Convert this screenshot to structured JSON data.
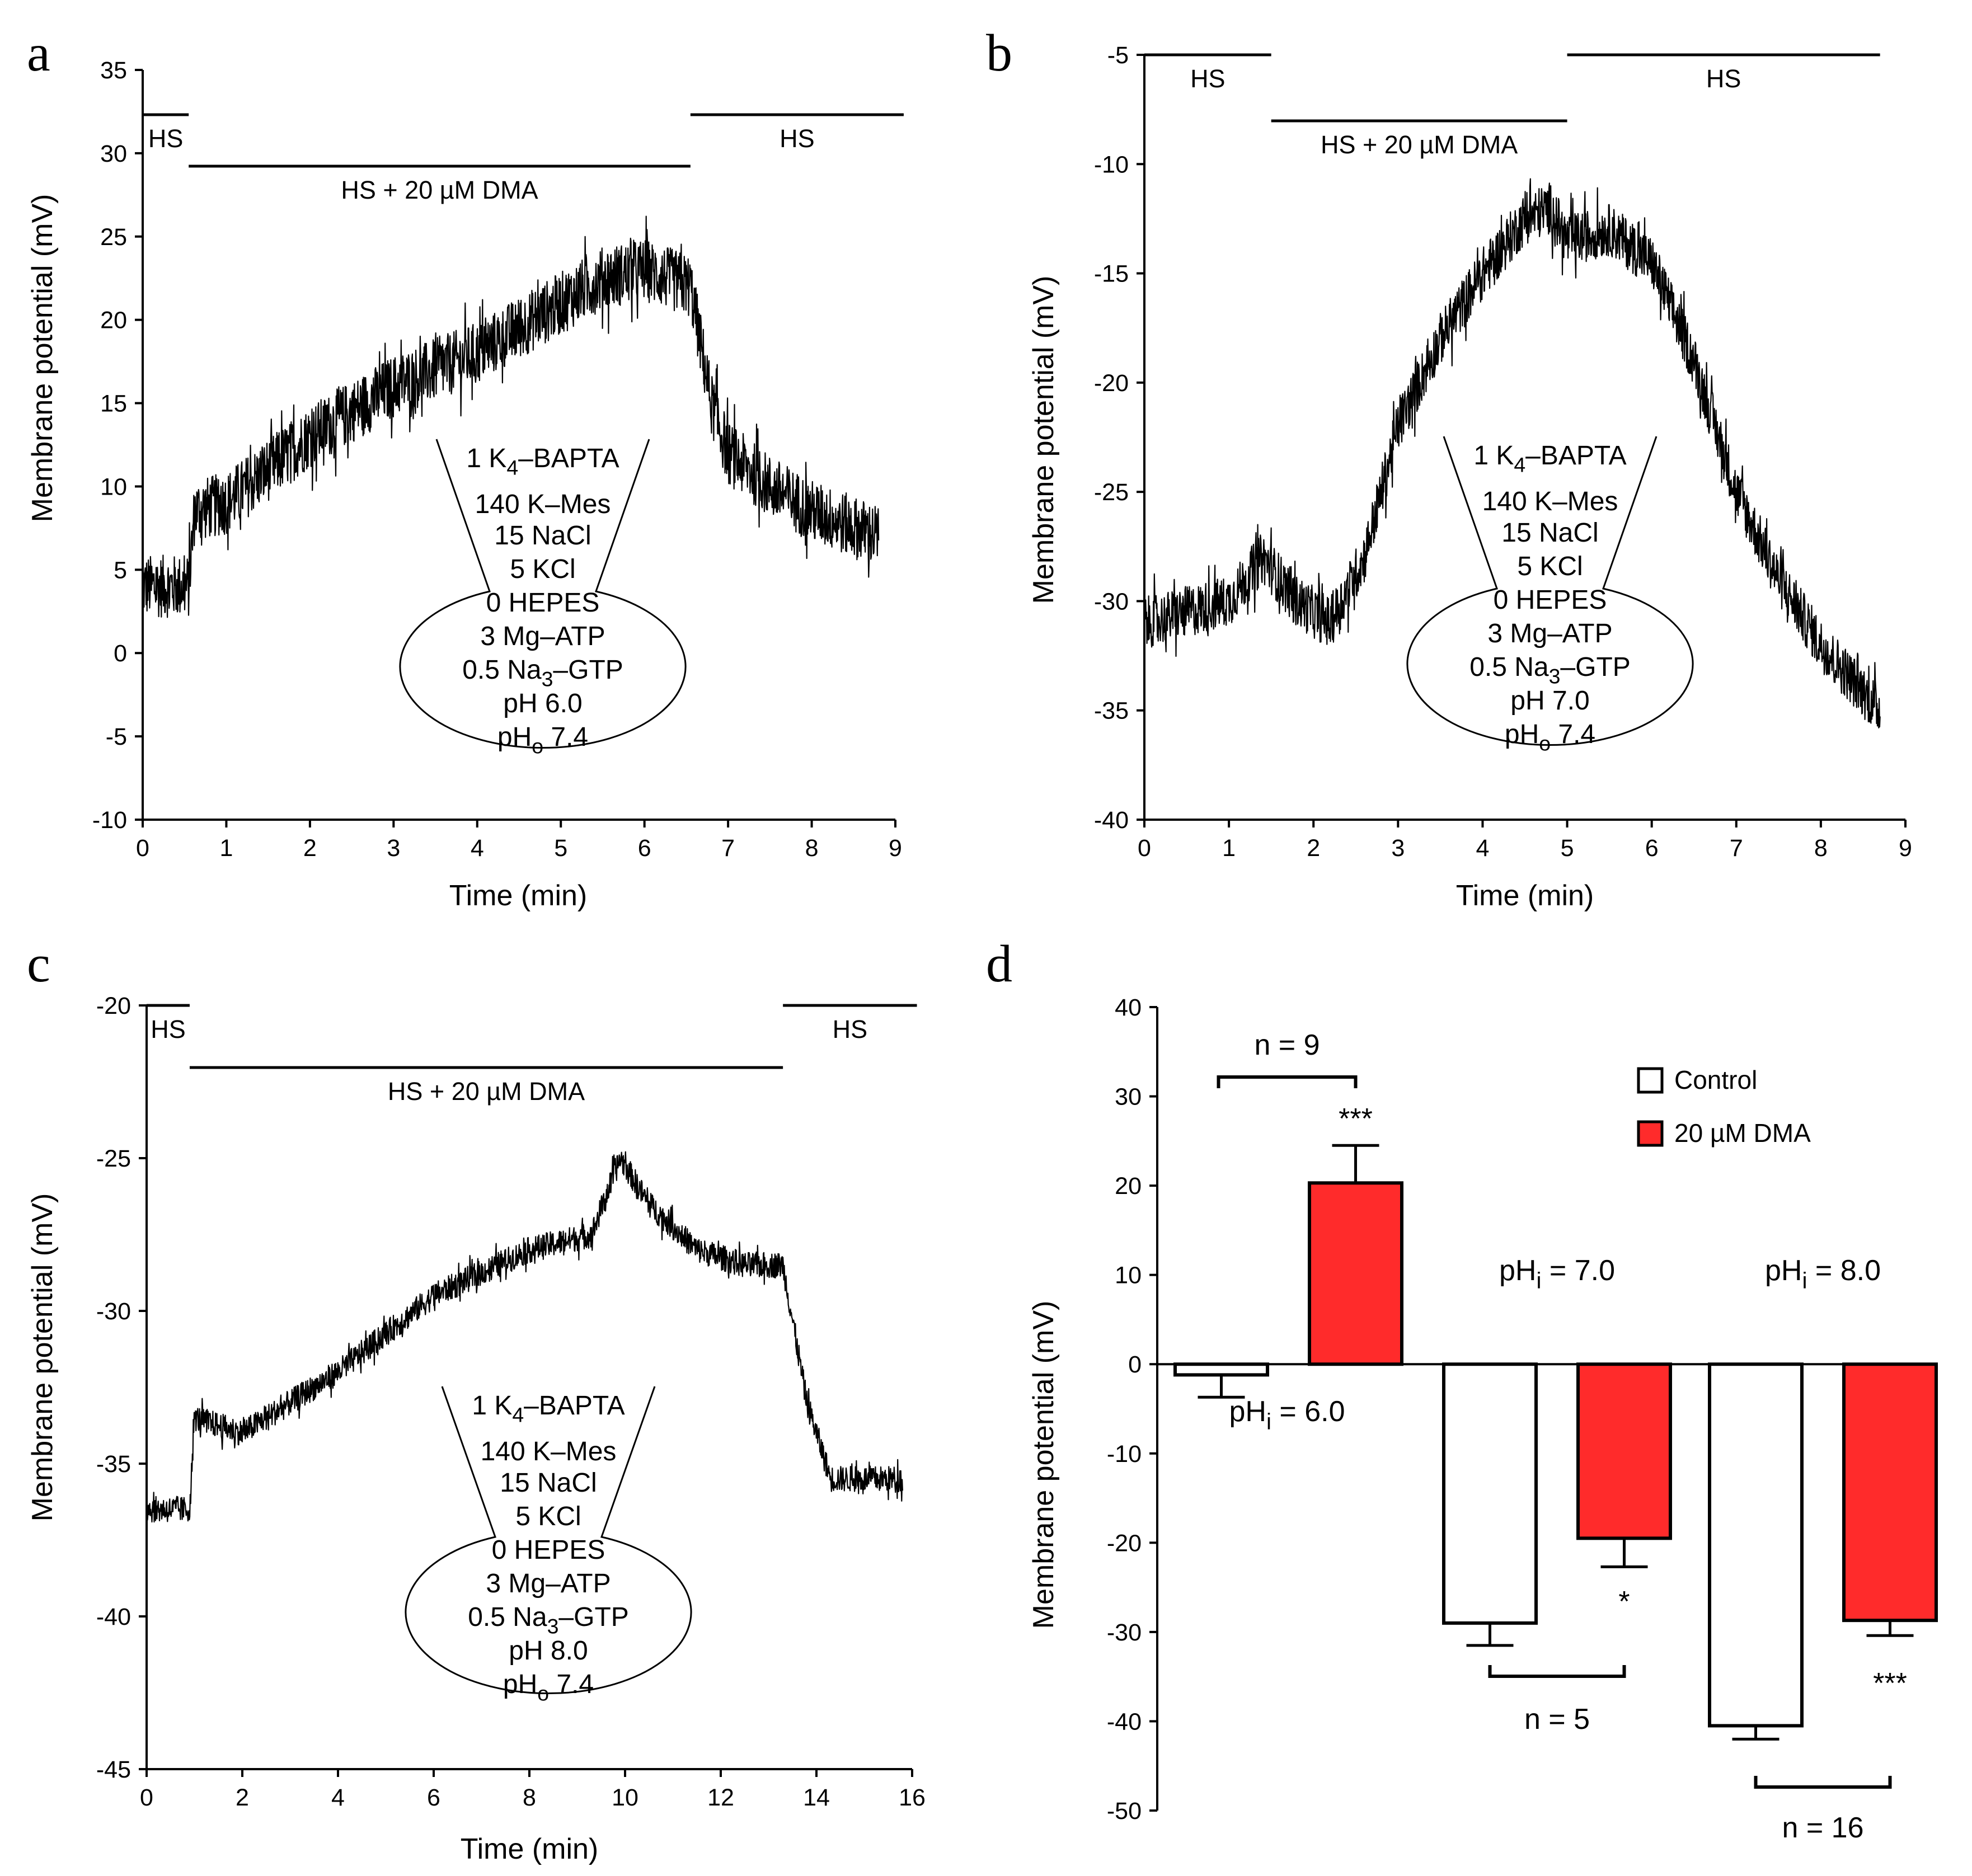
{
  "colors": {
    "trace": "#000000",
    "highlight": "#ee2222",
    "dma_bar": "#ff2b2b",
    "control_bar": "#ffffff"
  },
  "chart_data": [
    {
      "type": "line",
      "panel": "a",
      "xlabel": "Time (min)",
      "ylabel": "Membrane potential (mV)",
      "xlim": [
        0,
        9
      ],
      "ylim": [
        -10,
        35
      ],
      "xticks": [
        0,
        1,
        2,
        3,
        4,
        5,
        6,
        7,
        8,
        9
      ],
      "yticks": [
        -10,
        -5,
        0,
        5,
        10,
        15,
        20,
        25,
        30,
        35
      ],
      "xtick_labels": [
        "0",
        "1",
        "2",
        "3",
        "4",
        "5",
        "6",
        "7",
        "8",
        "9"
      ],
      "ytick_labels": [
        "-10",
        "-5",
        "0",
        "5",
        "10",
        "15",
        "20",
        "25",
        "30",
        "35"
      ],
      "trace_keypoints": {
        "x": [
          0,
          0.55,
          0.62,
          1,
          2,
          3,
          4,
          5,
          5.5,
          6,
          6.55,
          6.8,
          7,
          7.5,
          8,
          8.8
        ],
        "y": [
          4,
          4,
          8.5,
          9,
          13,
          16,
          18,
          21,
          22.5,
          23,
          22,
          15,
          12,
          10,
          8.5,
          7
        ]
      },
      "bars": [
        {
          "label": "HS",
          "x0": 0,
          "x1": 0.55,
          "level": "high"
        },
        {
          "label": "HS + 20 µM DMA",
          "x0": 0.55,
          "x1": 6.55,
          "level": "low"
        },
        {
          "label": "HS",
          "x0": 6.55,
          "x1": 9.1,
          "level": "high"
        }
      ],
      "inset": {
        "lines": [
          {
            "pre": "1 K",
            "sub": "4",
            "post": "–BAPTA",
            "red": false
          },
          {
            "pre": "140 K–Mes",
            "sub": "",
            "post": "",
            "red": false
          },
          {
            "pre": "15 NaCl",
            "sub": "",
            "post": "",
            "red": false
          },
          {
            "pre": "5 KCl",
            "sub": "",
            "post": "",
            "red": false
          },
          {
            "pre": "0 HEPES",
            "sub": "",
            "post": "",
            "red": true
          },
          {
            "pre": "3 Mg–ATP",
            "sub": "",
            "post": "",
            "red": false
          },
          {
            "pre": "0.5 Na",
            "sub": "3",
            "post": "–GTP",
            "red": false
          },
          {
            "pre": "pH 6.0",
            "sub": "",
            "post": "",
            "red": true
          },
          {
            "pre": "pH",
            "sub": "o",
            "post": " 7.4",
            "red": true
          }
        ]
      }
    },
    {
      "type": "line",
      "panel": "b",
      "xlabel": "Time (min)",
      "ylabel": "Membrane potential (mV)",
      "xlim": [
        0,
        9
      ],
      "ylim": [
        -40,
        -5
      ],
      "xticks": [
        0,
        1,
        2,
        3,
        4,
        5,
        6,
        7,
        8,
        9
      ],
      "yticks": [
        -40,
        -35,
        -30,
        -25,
        -20,
        -15,
        -10,
        -5
      ],
      "xtick_labels": [
        "0",
        "1",
        "2",
        "3",
        "4",
        "5",
        "6",
        "7",
        "8",
        "9"
      ],
      "ytick_labels": [
        "-40",
        "-35",
        "-30",
        "-25",
        "-20",
        "-15",
        "-10",
        "-5"
      ],
      "trace_keypoints": {
        "x": [
          0,
          1,
          1.4,
          1.8,
          2.2,
          2.6,
          3,
          3.5,
          4,
          4.5,
          4.8,
          5,
          5.5,
          6,
          6.5,
          7,
          7.5,
          8,
          8.7
        ],
        "y": [
          -31,
          -30,
          -28,
          -30,
          -31,
          -28,
          -22,
          -18,
          -15,
          -12.5,
          -12,
          -13.5,
          -13,
          -14.5,
          -19,
          -25,
          -29,
          -32,
          -35
        ]
      },
      "bars": [
        {
          "label": "HS",
          "x0": 0,
          "x1": 1.5,
          "level": "high"
        },
        {
          "label": "HS + 20 µM DMA",
          "x0": 1.5,
          "x1": 5,
          "level": "low"
        },
        {
          "label": "HS",
          "x0": 5,
          "x1": 8.7,
          "level": "high"
        }
      ],
      "inset": {
        "lines": [
          {
            "pre": "1 K",
            "sub": "4",
            "post": "–BAPTA",
            "red": false
          },
          {
            "pre": "140 K–Mes",
            "sub": "",
            "post": "",
            "red": false
          },
          {
            "pre": "15 NaCl",
            "sub": "",
            "post": "",
            "red": false
          },
          {
            "pre": "5 KCl",
            "sub": "",
            "post": "",
            "red": false
          },
          {
            "pre": "0 HEPES",
            "sub": "",
            "post": "",
            "red": true
          },
          {
            "pre": "3 Mg–ATP",
            "sub": "",
            "post": "",
            "red": false
          },
          {
            "pre": "0.5 Na",
            "sub": "3",
            "post": "–GTP",
            "red": false
          },
          {
            "pre": "pH 7.0",
            "sub": "",
            "post": "",
            "red": true
          },
          {
            "pre": "pH",
            "sub": "o",
            "post": " 7.4",
            "red": true
          }
        ]
      }
    },
    {
      "type": "line",
      "panel": "c",
      "xlabel": "Time (min)",
      "ylabel": "Membrane potential (mV)",
      "xlim": [
        0,
        16
      ],
      "ylim": [
        -45,
        -20
      ],
      "xticks": [
        0,
        2,
        4,
        6,
        8,
        10,
        12,
        14,
        16
      ],
      "yticks": [
        -45,
        -40,
        -35,
        -30,
        -25,
        -20
      ],
      "xtick_labels": [
        "0",
        "2",
        "4",
        "6",
        "8",
        "10",
        "12",
        "14",
        "16"
      ],
      "ytick_labels": [
        "-45",
        "-40",
        "-35",
        "-30",
        "-25",
        "-20"
      ],
      "trace_keypoints": {
        "x": [
          0,
          0.9,
          1,
          2,
          4,
          6,
          8,
          9.3,
          9.9,
          10.5,
          11.5,
          12.5,
          13.3,
          13.8,
          14.3,
          15.8
        ],
        "y": [
          -36.5,
          -36.5,
          -33.5,
          -34,
          -32,
          -29.5,
          -28,
          -27.5,
          -25,
          -26.5,
          -28,
          -28.5,
          -28.5,
          -33,
          -35.5,
          -35.5
        ]
      },
      "bars": [
        {
          "label": "HS",
          "x0": 0,
          "x1": 0.9,
          "level": "high"
        },
        {
          "label": "HS + 20 µM DMA",
          "x0": 0.9,
          "x1": 13.3,
          "level": "low"
        },
        {
          "label": "HS",
          "x0": 13.3,
          "x1": 16.1,
          "level": "high"
        }
      ],
      "inset": {
        "lines": [
          {
            "pre": "1 K",
            "sub": "4",
            "post": "–BAPTA",
            "red": false
          },
          {
            "pre": "140 K–Mes",
            "sub": "",
            "post": "",
            "red": false
          },
          {
            "pre": "15 NaCl",
            "sub": "",
            "post": "",
            "red": false
          },
          {
            "pre": "5 KCl",
            "sub": "",
            "post": "",
            "red": false
          },
          {
            "pre": "0 HEPES",
            "sub": "",
            "post": "",
            "red": true
          },
          {
            "pre": "3 Mg–ATP",
            "sub": "",
            "post": "",
            "red": false
          },
          {
            "pre": "0.5 Na",
            "sub": "3",
            "post": "–GTP",
            "red": false
          },
          {
            "pre": "pH 8.0",
            "sub": "",
            "post": "",
            "red": true
          },
          {
            "pre": "pH",
            "sub": "o",
            "post": " 7.4",
            "red": true
          }
        ]
      }
    },
    {
      "type": "bar",
      "panel": "d",
      "ylabel": "Membrane potential (mV)",
      "ylim": [
        -50,
        40
      ],
      "yticks": [
        -50,
        -40,
        -30,
        -20,
        -10,
        0,
        10,
        20,
        30,
        40
      ],
      "ytick_labels": [
        "-50",
        "-40",
        "-30",
        "-20",
        "-10",
        "0",
        "10",
        "20",
        "30",
        "40"
      ],
      "groups": [
        {
          "ph_label_pre": "pH",
          "ph_sub": "i",
          "ph_post": " = 6.0",
          "n_label": "n = 9",
          "sig": "***",
          "control": {
            "value": -1.2,
            "err": 2.5
          },
          "dma": {
            "value": 20.3,
            "err": 4.2
          }
        },
        {
          "ph_label_pre": "pH",
          "ph_sub": "i",
          "ph_post": " = 7.0",
          "n_label": "n = 5",
          "sig": "*",
          "control": {
            "value": -29.0,
            "err": 2.5
          },
          "dma": {
            "value": -19.5,
            "err": 3.2
          }
        },
        {
          "ph_label_pre": "pH",
          "ph_sub": "i",
          "ph_post": " = 8.0",
          "n_label": "n = 16",
          "sig": "***",
          "control": {
            "value": -40.5,
            "err": 1.5
          },
          "dma": {
            "value": -28.7,
            "err": 1.7
          }
        }
      ],
      "legend": [
        {
          "name": "Control",
          "color": "#ffffff"
        },
        {
          "name": "20 µM DMA",
          "color": "#ff2b2b"
        }
      ]
    }
  ]
}
